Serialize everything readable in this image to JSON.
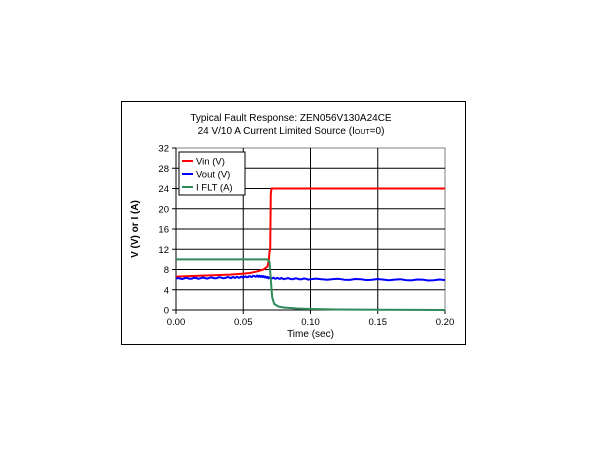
{
  "chart_data": {
    "type": "line",
    "title_line1": "Typical Fault Response: ZEN056V130A24CE",
    "title_line2_main": "24 V/10 A  Current Limited Source (I",
    "title_line2_sub": "OUT",
    "title_line2_tail": "=0)",
    "xlabel": "Time (sec)",
    "ylabel": "V (V) or I (A)",
    "xlim": [
      0,
      0.2
    ],
    "ylim": [
      0,
      32
    ],
    "xticks": [
      0,
      0.05,
      0.1,
      0.15,
      0.2
    ],
    "xtick_labels": [
      "0.00",
      "0.05",
      "0.10",
      "0.15",
      "0.20"
    ],
    "yticks": [
      0,
      4,
      8,
      12,
      16,
      20,
      24,
      28,
      32
    ],
    "ytick_labels": [
      "0",
      "4",
      "8",
      "12",
      "16",
      "20",
      "24",
      "28",
      "32"
    ],
    "grid": true,
    "legend_position": "top-left",
    "series": [
      {
        "name": "Vin (V)",
        "color": "#ff0000",
        "x": [
          0,
          0.01,
          0.02,
          0.03,
          0.04,
          0.05,
          0.055,
          0.06,
          0.065,
          0.068,
          0.069,
          0.0695,
          0.07,
          0.0705,
          0.071,
          0.08,
          0.1,
          0.15,
          0.2
        ],
        "y": [
          6.6,
          6.7,
          6.8,
          6.9,
          7.0,
          7.2,
          7.3,
          7.6,
          8.0,
          8.6,
          9.8,
          11.5,
          12.0,
          23.0,
          24.0,
          24.0,
          24.0,
          24.0,
          24.0
        ]
      },
      {
        "name": "Vout (V)",
        "color": "#0000ff",
        "x": [
          0,
          0.02,
          0.04,
          0.05,
          0.06,
          0.065,
          0.07,
          0.08,
          0.1,
          0.15,
          0.2
        ],
        "y": [
          6.2,
          6.3,
          6.4,
          6.5,
          6.7,
          6.6,
          6.3,
          6.2,
          6.1,
          6.0,
          5.9
        ],
        "noise": true
      },
      {
        "name": "I FLT (A)",
        "color": "#2e8b57",
        "x": [
          0,
          0.068,
          0.0695,
          0.0705,
          0.0715,
          0.073,
          0.076,
          0.08,
          0.09,
          0.1,
          0.12,
          0.2
        ],
        "y": [
          10.0,
          10.0,
          9.5,
          6.0,
          2.5,
          1.2,
          0.7,
          0.5,
          0.3,
          0.2,
          0.1,
          0.0
        ]
      }
    ]
  }
}
